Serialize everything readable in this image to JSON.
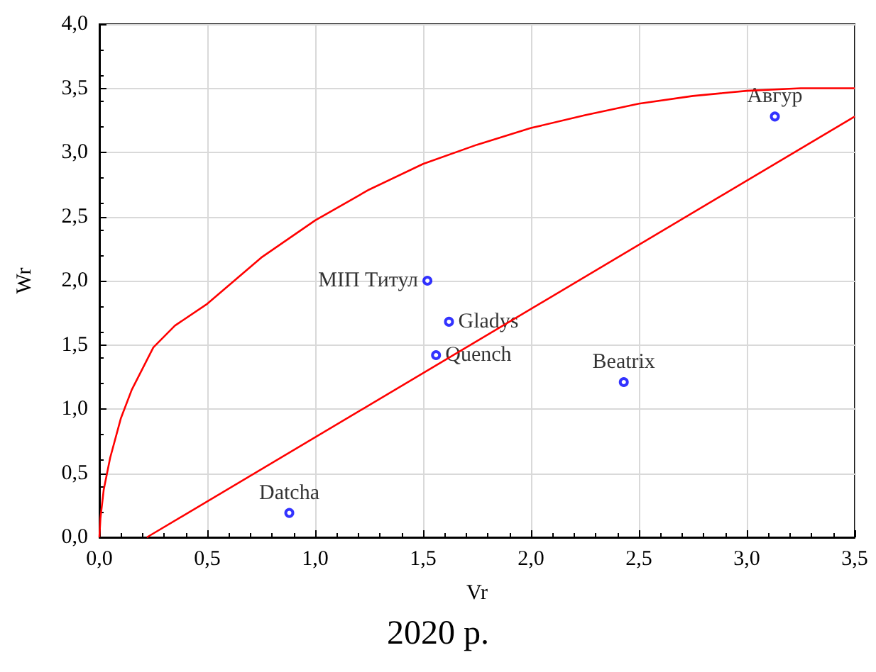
{
  "chart_data": {
    "type": "scatter",
    "xlabel": "Vr",
    "ylabel": "Wr",
    "annotations": [
      "2020 р."
    ],
    "xlim": [
      0,
      3.5
    ],
    "ylim": [
      0,
      4
    ],
    "xticks": [
      {
        "value": 0,
        "label": "0,0"
      },
      {
        "value": 0.5,
        "label": "0,5"
      },
      {
        "value": 1,
        "label": "1,0"
      },
      {
        "value": 1.5,
        "label": "1,5"
      },
      {
        "value": 2,
        "label": "2,0"
      },
      {
        "value": 2.5,
        "label": "2,5"
      },
      {
        "value": 3,
        "label": "3,0"
      },
      {
        "value": 3.5,
        "label": "3,5"
      }
    ],
    "yticks": [
      {
        "value": 0,
        "label": "0,0"
      },
      {
        "value": 0.5,
        "label": "0,5"
      },
      {
        "value": 1,
        "label": "1,0"
      },
      {
        "value": 1.5,
        "label": "1,5"
      },
      {
        "value": 2,
        "label": "2,0"
      },
      {
        "value": 2.5,
        "label": "2,5"
      },
      {
        "value": 3,
        "label": "3,0"
      },
      {
        "value": 3.5,
        "label": "3,5"
      },
      {
        "value": 4,
        "label": "4,0"
      }
    ],
    "grid": true,
    "legend": false,
    "marker": "circle",
    "series": [
      {
        "name": "Datcha",
        "color": "#0000ff",
        "x": [
          0.88
        ],
        "values": [
          0.19
        ]
      },
      {
        "name": "МІП Титул",
        "color": "#0000ff",
        "x": [
          1.52
        ],
        "values": [
          2.0
        ]
      },
      {
        "name": "Gladys",
        "color": "#0000ff",
        "x": [
          1.62
        ],
        "values": [
          1.68
        ]
      },
      {
        "name": "Quench",
        "color": "#0000ff",
        "x": [
          1.56
        ],
        "values": [
          1.42
        ]
      },
      {
        "name": "Beatrix",
        "color": "#0000ff",
        "x": [
          2.43
        ],
        "values": [
          1.21
        ]
      },
      {
        "name": "Авгур",
        "color": "#0000ff",
        "x": [
          3.13
        ],
        "values": [
          3.28
        ]
      },
      {
        "type": "line",
        "color": "#ff0000",
        "marker": "none",
        "line_style": "solid",
        "x": [
          0,
          0.005,
          0.02,
          0.05,
          0.1,
          0.15,
          0.25,
          0.35,
          0.5,
          0.75,
          1.0,
          1.25,
          1.5,
          1.75,
          2.0,
          2.25,
          2.5,
          2.75,
          3.0,
          3.25,
          3.5
        ],
        "values": [
          0,
          0.15,
          0.37,
          0.62,
          0.93,
          1.15,
          1.48,
          1.65,
          1.82,
          2.18,
          2.47,
          2.71,
          2.91,
          3.06,
          3.19,
          3.29,
          3.38,
          3.44,
          3.48,
          3.5,
          3.5
        ]
      },
      {
        "type": "line",
        "color": "#ff0000",
        "marker": "none",
        "line_style": "solid",
        "x": [
          0.22,
          3.5
        ],
        "values": [
          0,
          3.28
        ]
      }
    ]
  }
}
